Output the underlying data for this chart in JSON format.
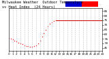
{
  "background_color": "#ffffff",
  "grid_color": "#bbbbbb",
  "xlim": [
    0,
    24
  ],
  "ylim": [
    42,
    88
  ],
  "ytick_values": [
    45,
    50,
    55,
    60,
    65,
    70,
    75,
    80,
    85
  ],
  "xtick_values": [
    0,
    1,
    2,
    3,
    4,
    5,
    6,
    7,
    8,
    9,
    10,
    11,
    12,
    13,
    14,
    15,
    16,
    17,
    18,
    19,
    20,
    21,
    22,
    23,
    24
  ],
  "temp_x": [
    0,
    0.5,
    1,
    1.5,
    2,
    2.5,
    3,
    3.5,
    4,
    4.5,
    5,
    5.5,
    6,
    6.5,
    7,
    7.5,
    8,
    8.5,
    9,
    9.5,
    10,
    10.5,
    11,
    11.5,
    12,
    12.5,
    13,
    13.5,
    14,
    14.5,
    15,
    15.5,
    16,
    16.5,
    17,
    17.5,
    18,
    18.5,
    19,
    19.5,
    20,
    20.5,
    21,
    21.5,
    22,
    22.5,
    23,
    23.5
  ],
  "temp_y": [
    56,
    55,
    54,
    53,
    52,
    51,
    50,
    49,
    48,
    47,
    47,
    46,
    46,
    47,
    48,
    50,
    53,
    57,
    61,
    65,
    68,
    71,
    73,
    74,
    75,
    75,
    75,
    75,
    75,
    75,
    75,
    75,
    75,
    75,
    75,
    75,
    75,
    75,
    75,
    75,
    75,
    75,
    75,
    75,
    75,
    75,
    75,
    75
  ],
  "heat_x": [
    12,
    13,
    14,
    15,
    16,
    17,
    18,
    19,
    20,
    21,
    22,
    23,
    24
  ],
  "heat_y": [
    75,
    75,
    75,
    75,
    75,
    75,
    75,
    75,
    75,
    75,
    75,
    75,
    75
  ],
  "temp_color": "#ff0000",
  "heat_color": "#cc0000",
  "legend_blue_color": "#0000cc",
  "legend_red_color": "#ff0000",
  "dot_size": 0.9,
  "tick_fontsize": 3.0,
  "title_fontsize": 3.8,
  "title_line1": "Milwaukee Weather  Outdoor Temperature",
  "title_line2": "vs Heat Index  (24 Hours)"
}
